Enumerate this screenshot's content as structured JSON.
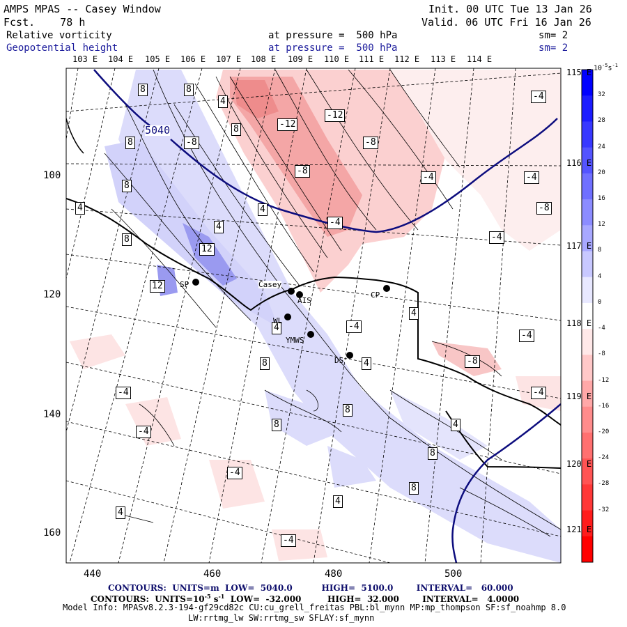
{
  "header": {
    "title": "AMPS MPAS -- Casey Window",
    "fcst": "Fcst.    78 h",
    "init": "Init. 00 UTC Tue 13 Jan 26",
    "valid": "Valid. 06 UTC Fri 16 Jan 26",
    "field1": {
      "name": "Relative vorticity",
      "level": "at pressure =  500 hPa",
      "sm": "sm= 2"
    },
    "field2": {
      "name": "Geopotential height",
      "level": "at pressure =  500 hPa",
      "sm": "sm= 2"
    }
  },
  "top_lon_labels": [
    "103 E",
    "104 E",
    "105 E",
    "106 E",
    "107 E",
    "108 E",
    "109 E",
    "110 E",
    "111 E",
    "112 E",
    "113 E",
    "114 E"
  ],
  "right_lon_labels": [
    "115 E",
    "116 E",
    "117 E",
    "118 E",
    "119 E",
    "120 E",
    "121 E"
  ],
  "x_ticks": [
    "440",
    "460",
    "480",
    "500"
  ],
  "y_ticks": [
    "100",
    "120",
    "140",
    "160"
  ],
  "contour_labels": {
    "height": "5040",
    "positive": [
      "8",
      "8",
      "8",
      "8",
      "4",
      "8",
      "4",
      "8",
      "4",
      "12",
      "12",
      "4",
      "4",
      "4",
      "8",
      "4",
      "8",
      "8",
      "4",
      "8",
      "8",
      "4"
    ],
    "negative": [
      "-12",
      "-12",
      "-8",
      "-8",
      "-8",
      "-4",
      "-4",
      "-4",
      "-8",
      "-4",
      "-4",
      "-4",
      "-4",
      "-4",
      "-4",
      "-4",
      "-4",
      "-8",
      "-4"
    ]
  },
  "stations": [
    "Casey",
    "SP",
    "WL",
    "AIS",
    "YMWS",
    "DS",
    "CP"
  ],
  "colorbar": {
    "units": "10^-5 s^-1",
    "unit_base": "10",
    "unit_exp": "-5",
    "unit_tail": "s",
    "unit_tail_exp": "-1",
    "labels": [
      "32",
      "28",
      "24",
      "20",
      "16",
      "12",
      "8",
      "4",
      "0",
      "-4",
      "-8",
      "-12",
      "-16",
      "-20",
      "-24",
      "-28",
      "-32"
    ],
    "colors": [
      "#0000ff",
      "#1c1cff",
      "#3838ff",
      "#5454ff",
      "#7070ff",
      "#8c8cff",
      "#a8a8ff",
      "#c8c8ff",
      "#e8e8ff",
      "#ffffff",
      "#ffe8e8",
      "#ffc8c8",
      "#ffa8a8",
      "#ff8c8c",
      "#ff7070",
      "#ff5454",
      "#ff3838",
      "#ff1c1c",
      "#ff0000"
    ]
  },
  "footer": {
    "line1": "CONTOURS:  UNITS=m  LOW=  5040.0          HIGH=  5100.0        INTERVAL=   60.000",
    "line2": "CONTOURS:  UNITS=10",
    "line2_exp": "-5",
    "line2_mid": " s",
    "line2_exp2": "-1",
    "line2_tail": "  LOW=  -32.000         HIGH=  32.000        INTERVAL=   4.0000",
    "line3": "Model Info: MPASv8.2.3-194-gf29cd82c CU:cu_grell_freitas PBL:bl_mynn MP:mp_thompson SF:sf_noahmp 8.0",
    "line4": "LW:rrtmg_lw SW:rrtmg_sw SFLAY:sf_mynn"
  }
}
